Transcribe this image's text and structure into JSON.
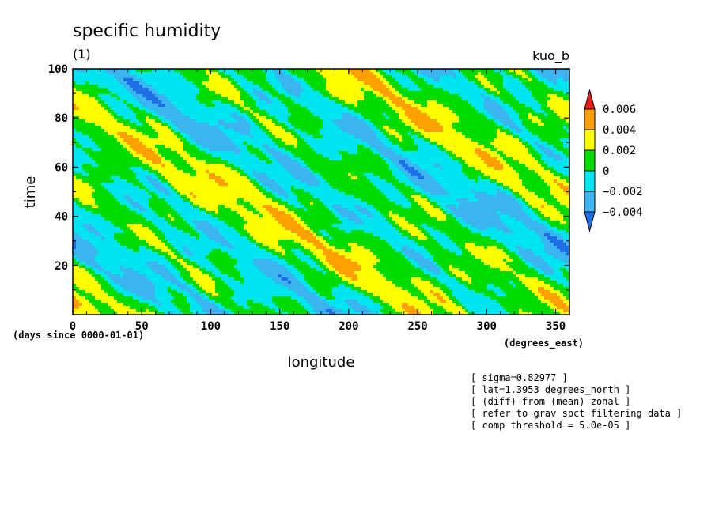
{
  "chart_data": {
    "type": "heatmap",
    "title": "specific humidity",
    "subtitle": "(1)",
    "experiment": "kuo_b",
    "xlabel": "longitude",
    "ylabel": "time",
    "x_units": "(degrees_east)",
    "y_units": "(days since 0000-01-01)",
    "xlim": [
      0,
      360
    ],
    "ylim": [
      0,
      100
    ],
    "x_ticks": [
      0,
      50,
      100,
      150,
      200,
      250,
      300,
      350
    ],
    "y_ticks": [
      20,
      40,
      60,
      80,
      100
    ],
    "colorbar": {
      "levels": [
        "-0.004",
        "-0.002",
        "0",
        "0.002",
        "0.004",
        "0.006"
      ],
      "colors": [
        "#1e6ee6",
        "#3cb4f0",
        "#00e6f0",
        "#00dc00",
        "#ffff00",
        "#ffa000",
        "#e61e1e"
      ]
    },
    "annotations": [
      "[ sigma=0.82977 ]",
      "[ lat=1.3953 degrees_north ]",
      "[ (diff) from (mean) zonal ]",
      "[ refer to grav spct filtering data ]",
      "[ comp threshold = 5.0e-05 ]"
    ]
  }
}
